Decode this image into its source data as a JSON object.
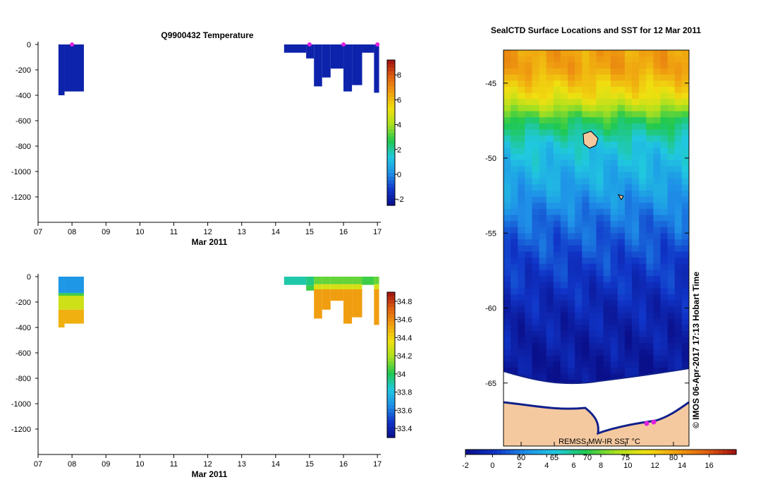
{
  "chart_data": [
    {
      "type": "heatmap",
      "title": "Q9900432  Temperature",
      "xlabel": "Mar 2011",
      "ylabel": "",
      "xlim": [
        7,
        17.1
      ],
      "ylim": [
        -1400,
        0
      ],
      "x_ticks": [
        "07",
        "08",
        "09",
        "10",
        "11",
        "12",
        "13",
        "14",
        "15",
        "16",
        "17"
      ],
      "y_ticks": [
        "0",
        "-200",
        "-400",
        "-600",
        "-800",
        "-1000",
        "-1200"
      ],
      "colorbar": {
        "ticks": [
          "-2",
          "0",
          "2",
          "4",
          "6",
          "8"
        ],
        "range": [
          -2.5,
          9.2
        ]
      },
      "surface_markers": [
        8.0,
        15.0,
        16.0,
        17.0
      ],
      "profiles": [
        {
          "x0": 7.6,
          "x1": 7.78,
          "depth": 400,
          "value": -1.8
        },
        {
          "x0": 7.78,
          "x1": 8.35,
          "depth": 370,
          "value": -1.8
        },
        {
          "x0": 14.25,
          "x1": 14.9,
          "depth": 65,
          "value": -1.8
        },
        {
          "x0": 14.9,
          "x1": 15.13,
          "depth": 110,
          "value": -1.8
        },
        {
          "x0": 15.13,
          "x1": 15.37,
          "depth": 330,
          "value": -1.8
        },
        {
          "x0": 15.37,
          "x1": 15.62,
          "depth": 260,
          "value": -1.8
        },
        {
          "x0": 15.62,
          "x1": 16.0,
          "depth": 190,
          "value": -1.8
        },
        {
          "x0": 16.0,
          "x1": 16.25,
          "depth": 370,
          "value": -1.8
        },
        {
          "x0": 16.25,
          "x1": 16.55,
          "depth": 320,
          "value": -1.8
        },
        {
          "x0": 16.55,
          "x1": 16.9,
          "depth": 65,
          "value": -1.8
        },
        {
          "x0": 16.9,
          "x1": 17.05,
          "depth": 380,
          "value": -1.8
        }
      ]
    },
    {
      "type": "heatmap",
      "title": "",
      "xlabel": "Mar 2011",
      "ylabel": "",
      "xlim": [
        7,
        17.1
      ],
      "ylim": [
        -1400,
        0
      ],
      "x_ticks": [
        "07",
        "08",
        "09",
        "10",
        "11",
        "12",
        "13",
        "14",
        "15",
        "16",
        "17"
      ],
      "y_ticks": [
        "0",
        "-200",
        "-400",
        "-600",
        "-800",
        "-1000",
        "-1200"
      ],
      "colorbar": {
        "ticks": [
          "33.4",
          "33.6",
          "33.8",
          "34",
          "34.2",
          "34.4",
          "34.6",
          "34.8"
        ],
        "range": [
          33.3,
          34.9
        ]
      },
      "profiles": [
        {
          "x0": 7.6,
          "x1": 7.78,
          "depth": 400,
          "segments": [
            [
              0,
              130,
              33.68
            ],
            [
              130,
              150,
              34.05
            ],
            [
              150,
              260,
              34.28
            ],
            [
              260,
              400,
              34.5
            ]
          ]
        },
        {
          "x0": 7.78,
          "x1": 8.35,
          "depth": 370,
          "segments": [
            [
              0,
              130,
              33.68
            ],
            [
              130,
              150,
              34.05
            ],
            [
              150,
              260,
              34.28
            ],
            [
              260,
              370,
              34.5
            ]
          ]
        },
        {
          "x0": 14.25,
          "x1": 14.9,
          "depth": 65,
          "segments": [
            [
              0,
              65,
              33.9
            ]
          ]
        },
        {
          "x0": 14.9,
          "x1": 15.13,
          "depth": 110,
          "segments": [
            [
              0,
              70,
              33.95
            ],
            [
              70,
              110,
              34.05
            ]
          ]
        },
        {
          "x0": 15.13,
          "x1": 15.37,
          "depth": 330,
          "segments": [
            [
              0,
              60,
              34.1
            ],
            [
              60,
              100,
              34.3
            ],
            [
              100,
              330,
              34.55
            ]
          ]
        },
        {
          "x0": 15.37,
          "x1": 15.62,
          "depth": 260,
          "segments": [
            [
              0,
              60,
              34.1
            ],
            [
              60,
              100,
              34.3
            ],
            [
              100,
              260,
              34.55
            ]
          ]
        },
        {
          "x0": 15.62,
          "x1": 16.0,
          "depth": 190,
          "segments": [
            [
              0,
              60,
              34.1
            ],
            [
              60,
              100,
              34.3
            ],
            [
              100,
              190,
              34.55
            ]
          ]
        },
        {
          "x0": 16.0,
          "x1": 16.25,
          "depth": 370,
          "segments": [
            [
              0,
              60,
              34.1
            ],
            [
              60,
              100,
              34.3
            ],
            [
              100,
              370,
              34.55
            ]
          ]
        },
        {
          "x0": 16.25,
          "x1": 16.55,
          "depth": 320,
          "segments": [
            [
              0,
              60,
              34.1
            ],
            [
              60,
              100,
              34.3
            ],
            [
              100,
              320,
              34.55
            ]
          ]
        },
        {
          "x0": 16.55,
          "x1": 16.9,
          "depth": 65,
          "segments": [
            [
              0,
              65,
              34.05
            ]
          ]
        },
        {
          "x0": 16.9,
          "x1": 17.05,
          "depth": 380,
          "segments": [
            [
              0,
              60,
              34.1
            ],
            [
              60,
              100,
              34.3
            ],
            [
              100,
              380,
              34.55
            ]
          ]
        }
      ]
    },
    {
      "type": "heatmap",
      "title": "SealCTD Surface Locations and SST for 12 Mar 2011",
      "xlabel": "",
      "ylabel": "",
      "y_ticks": [
        "-45",
        "-50",
        "-55",
        "-60",
        "-65"
      ],
      "ylim": [
        -69.2,
        -42.8
      ],
      "x_ticks": [
        "60",
        "65",
        "70",
        "75",
        "80"
      ],
      "colorbar": {
        "label": "REMSS MW-IR SST °C",
        "ticks": [
          "-2",
          "0",
          "2",
          "4",
          "6",
          "8",
          "10",
          "12",
          "14",
          "16"
        ],
        "range": [
          -2,
          18
        ]
      },
      "credit": "© IMOS 06-Apr-2017 17:13 Hobart Time"
    }
  ]
}
